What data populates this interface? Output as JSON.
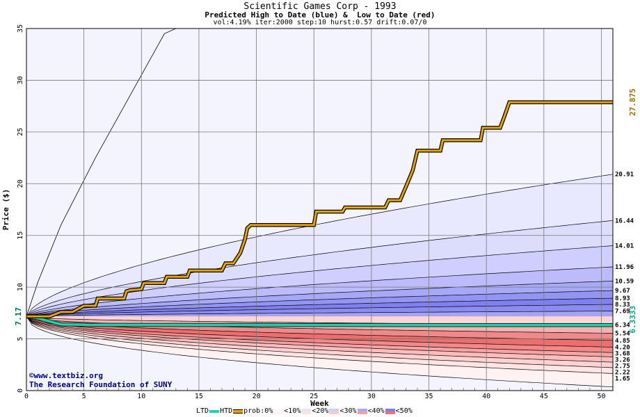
{
  "header": {
    "title": "Scientific Games Corp - 1993",
    "subtitle": "Predicted High to Date (blue) &  Low to Date (red)",
    "params": "vol:4.19% iter:2000 step:10 hurst:0.57 drift:0.07/0"
  },
  "credit": {
    "url": "©www.textbiz.org",
    "org": "The Research Foundation of SUNY"
  },
  "legend": {
    "ltd": "LTD",
    "htd": "HTD",
    "prob": "prob:0%",
    "b10": "<10%",
    "b20": "<20%",
    "b30": "<30%",
    "b40": "<40%",
    "b50": "<50%"
  },
  "chart_data": {
    "type": "line",
    "title": "Scientific Games Corp - 1993",
    "xlabel": "Week",
    "ylabel": "Price ($)",
    "xlim": [
      0,
      51
    ],
    "ylim": [
      0,
      35
    ],
    "xticks": [
      0,
      5,
      10,
      15,
      20,
      25,
      30,
      35,
      40,
      45,
      50
    ],
    "yticks": [
      0,
      5,
      10,
      15,
      20,
      25,
      30,
      35
    ],
    "grid": true,
    "start_price": 7.17,
    "start_label": "7.17",
    "colors": {
      "htd": "#e8a400",
      "ltd": "#20d0b0",
      "high_band_deep": "#7070ee",
      "high_band_light": "#f6f6ff",
      "low_band_deep": "#ee5050",
      "low_band_light": "#fff2f2"
    },
    "htd_series": {
      "name": "HTD",
      "final_label": "27.875",
      "points": [
        [
          0,
          7.17
        ],
        [
          2,
          7.17
        ],
        [
          3,
          7.6
        ],
        [
          4,
          7.6
        ],
        [
          5,
          8.2
        ],
        [
          6,
          8.2
        ],
        [
          6.2,
          8.9
        ],
        [
          8.5,
          8.9
        ],
        [
          8.7,
          9.6
        ],
        [
          9,
          9.7
        ],
        [
          10,
          9.8
        ],
        [
          10.2,
          10.4
        ],
        [
          12,
          10.4
        ],
        [
          12.2,
          11.0
        ],
        [
          14,
          11.0
        ],
        [
          14.2,
          11.6
        ],
        [
          17,
          11.6
        ],
        [
          17.3,
          12.3
        ],
        [
          18,
          12.3
        ],
        [
          18.6,
          13.3
        ],
        [
          19,
          14.6
        ],
        [
          19.2,
          15.7
        ],
        [
          19.5,
          16.0
        ],
        [
          25,
          16.0
        ],
        [
          25.2,
          17.3
        ],
        [
          27.5,
          17.3
        ],
        [
          27.7,
          17.7
        ],
        [
          31.2,
          17.7
        ],
        [
          31.5,
          18.4
        ],
        [
          32.5,
          18.4
        ],
        [
          33,
          19.7
        ],
        [
          33.6,
          21.3
        ],
        [
          34,
          23.2
        ],
        [
          36,
          23.2
        ],
        [
          36.2,
          24.2
        ],
        [
          39.5,
          24.2
        ],
        [
          39.7,
          25.4
        ],
        [
          41.2,
          25.4
        ],
        [
          41.6,
          26.6
        ],
        [
          42,
          27.875
        ],
        [
          51,
          27.875
        ]
      ]
    },
    "ltd_series": {
      "name": "LTD",
      "final_label": "6.3333",
      "points": [
        [
          0,
          7.17
        ],
        [
          1,
          7.0
        ],
        [
          2,
          6.7
        ],
        [
          3,
          6.4
        ],
        [
          5,
          6.36
        ],
        [
          10,
          6.35
        ],
        [
          20,
          6.34
        ],
        [
          36,
          6.3333
        ],
        [
          51,
          6.3333
        ]
      ]
    },
    "high_percentile_curves_end": [
      {
        "label": "20.91",
        "value": 20.91
      },
      {
        "label": "16.44",
        "value": 16.44
      },
      {
        "label": "14.01",
        "value": 14.01
      },
      {
        "label": "11.96",
        "value": 11.96
      },
      {
        "label": "10.59",
        "value": 10.59
      },
      {
        "label": "9.67",
        "value": 9.67
      },
      {
        "label": "8.93",
        "value": 8.93
      },
      {
        "label": "8.33",
        "value": 8.33
      },
      {
        "label": "7.69",
        "value": 7.69
      }
    ],
    "low_percentile_curves_end": [
      {
        "label": "6.34",
        "value": 6.34
      },
      {
        "label": "5.54",
        "value": 5.54
      },
      {
        "label": "4.85",
        "value": 4.85
      },
      {
        "label": "4.20",
        "value": 4.2
      },
      {
        "label": "3.68",
        "value": 3.68
      },
      {
        "label": "3.26",
        "value": 3.26
      },
      {
        "label": "2.75",
        "value": 2.75
      },
      {
        "label": "2.22",
        "value": 2.22
      },
      {
        "label": "1.65",
        "value": 1.65
      }
    ]
  }
}
